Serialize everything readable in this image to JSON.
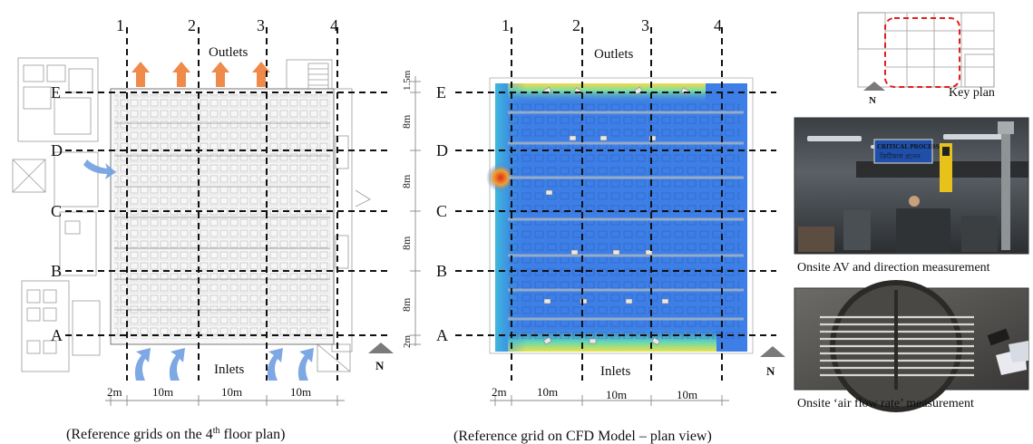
{
  "left_panel": {
    "grid_cols": [
      "1",
      "2",
      "3",
      "4"
    ],
    "grid_rows": [
      "E",
      "D",
      "C",
      "B",
      "A"
    ],
    "outlets_label": "Outlets",
    "inlets_label": "Inlets",
    "spacing_bottom": [
      "2m",
      "10m",
      "10m",
      "10m"
    ],
    "spacing_side": [
      "1.5m",
      "8m",
      "8m",
      "8m",
      "8m",
      "2m"
    ],
    "north_label": "N"
  },
  "middle_panel": {
    "grid_cols": [
      "1",
      "2",
      "3",
      "4"
    ],
    "grid_rows": [
      "E",
      "D",
      "C",
      "B",
      "A"
    ],
    "outlets_label": "Outlets",
    "inlets_label": "Inlets",
    "spacing_bottom": [
      "2m",
      "10m",
      "10m",
      "10m"
    ],
    "north_label": "N"
  },
  "captions": {
    "left_prefix": "(Reference grids on the 4",
    "left_sup": "th",
    "left_suffix": " floor plan)",
    "middle": "(Reference grid on CFD Model – plan view)",
    "key_plan": "Key plan",
    "photo1": "Onsite AV and direction measurement",
    "photo2": "Onsite ‘air flow rate’ measurement"
  },
  "photo1_sign": {
    "line1": "CRITICAL PROCESS",
    "line2": "ক্রিটিকাল প্রসেস"
  },
  "colors": {
    "cfd_blue": "#3d7fe6",
    "inlet_arrow": "#6f9fe0",
    "outlet_arrow": "#f08a4b",
    "keyplan_highlight": "#e02020"
  }
}
